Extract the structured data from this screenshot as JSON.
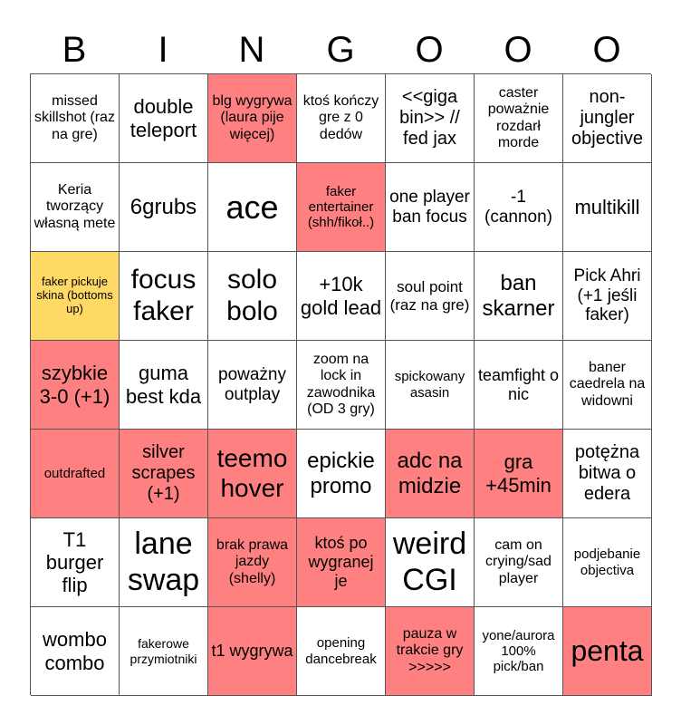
{
  "header": {
    "letters": [
      "B",
      "I",
      "N",
      "G",
      "O",
      "O",
      "O"
    ]
  },
  "colors": {
    "marked": "#FF8080",
    "highlight": "#FFD966",
    "empty": "#FFFFFF"
  },
  "rows": [
    [
      {
        "text": "missed skillshot (raz na gre)",
        "state": "empty"
      },
      {
        "text": "double teleport",
        "state": "empty"
      },
      {
        "text": "blg wygrywa (laura pije więcej)",
        "state": "marked"
      },
      {
        "text": "ktoś kończy gre z 0 dedów",
        "state": "empty"
      },
      {
        "text": "<<giga bin>> // fed jax",
        "state": "empty"
      },
      {
        "text": "caster poważnie rozdarł morde",
        "state": "empty"
      },
      {
        "text": "non-jungler objective",
        "state": "empty"
      }
    ],
    [
      {
        "text": "Keria tworzący własną mete",
        "state": "empty"
      },
      {
        "text": "6grubs",
        "state": "empty"
      },
      {
        "text": "ace",
        "state": "empty"
      },
      {
        "text": "faker entertainer (shh/fikoł..)",
        "state": "marked"
      },
      {
        "text": "one player ban focus",
        "state": "empty"
      },
      {
        "text": "-1 (cannon)",
        "state": "empty"
      },
      {
        "text": "multikill",
        "state": "empty"
      }
    ],
    [
      {
        "text": "faker pickuje skina (bottoms up)",
        "state": "highlight"
      },
      {
        "text": "focus faker",
        "state": "empty"
      },
      {
        "text": "solo bolo",
        "state": "empty"
      },
      {
        "text": "+10k gold lead",
        "state": "empty"
      },
      {
        "text": "soul point (raz na gre)",
        "state": "empty"
      },
      {
        "text": "ban skarner",
        "state": "empty"
      },
      {
        "text": "Pick Ahri (+1 jeśli faker)",
        "state": "empty"
      }
    ],
    [
      {
        "text": "szybkie 3-0 (+1)",
        "state": "marked"
      },
      {
        "text": "guma best kda",
        "state": "empty"
      },
      {
        "text": "poważny outplay",
        "state": "empty"
      },
      {
        "text": "zoom na lock in zawodnika (OD 3 gry)",
        "state": "empty"
      },
      {
        "text": "spickowany asasin",
        "state": "empty"
      },
      {
        "text": "teamfight o nic",
        "state": "empty"
      },
      {
        "text": "baner caedrela na widowni",
        "state": "empty"
      }
    ],
    [
      {
        "text": "outdrafted",
        "state": "marked"
      },
      {
        "text": "silver scrapes (+1)",
        "state": "marked"
      },
      {
        "text": "teemo hover",
        "state": "marked"
      },
      {
        "text": "epickie promo",
        "state": "empty"
      },
      {
        "text": "adc na midzie",
        "state": "marked"
      },
      {
        "text": "gra +45min",
        "state": "marked"
      },
      {
        "text": "potężna bitwa o edera",
        "state": "empty"
      }
    ],
    [
      {
        "text": "T1 burger flip",
        "state": "empty"
      },
      {
        "text": "lane swap",
        "state": "empty"
      },
      {
        "text": "brak prawa jazdy (shelly)",
        "state": "marked"
      },
      {
        "text": "ktoś po wygranej je",
        "state": "marked"
      },
      {
        "text": "weird CGI",
        "state": "empty"
      },
      {
        "text": "cam on crying/sad player",
        "state": "empty"
      },
      {
        "text": "podjebanie objectiva",
        "state": "empty"
      }
    ],
    [
      {
        "text": "wombo combo",
        "state": "empty"
      },
      {
        "text": "fakerowe przymiotniki",
        "state": "empty"
      },
      {
        "text": "t1 wygrywa",
        "state": "marked"
      },
      {
        "text": "opening dancebreak",
        "state": "empty"
      },
      {
        "text": "pauza w trakcie gry >>>>>",
        "state": "marked"
      },
      {
        "text": "yone/aurora 100% pick/ban",
        "state": "empty"
      },
      {
        "text": "penta",
        "state": "marked"
      }
    ]
  ]
}
